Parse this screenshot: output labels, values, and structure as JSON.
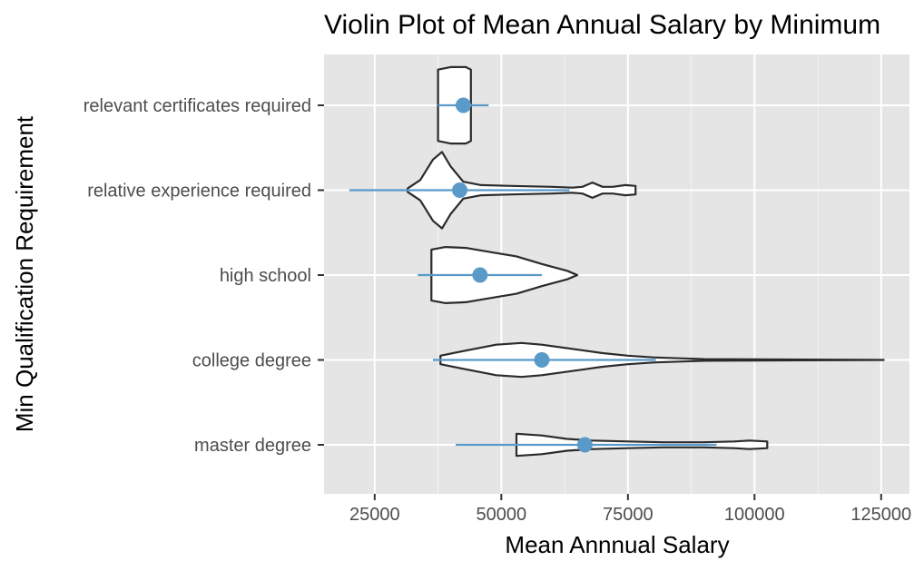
{
  "chart_data": {
    "type": "violin",
    "title": "Violin Plot of Mean Annual Salary by Minimum",
    "xlabel": "Mean Annnual Salary",
    "ylabel": "Min Qualification Requirement",
    "xlim": [
      15000,
      128000
    ],
    "x_ticks": [
      25000,
      50000,
      75000,
      100000,
      125000
    ],
    "x_tick_labels": [
      "25000",
      "50000",
      "75000",
      "100000",
      "125000"
    ],
    "categories": [
      "relevant certificates required",
      "relative experience required",
      "high school",
      "college degree",
      "master degree"
    ],
    "orientation": "horizontal",
    "grid": true,
    "colors": {
      "panel": "#e5e5e5",
      "grid": "#ffffff",
      "violin_stroke": "#2b2b2b",
      "violin_fill": "#ffffff",
      "summary": "#5a9ac9"
    },
    "series": [
      {
        "category": "relevant certificates required",
        "mean": 42500,
        "range": [
          37500,
          47500
        ],
        "density": [
          [
            37500,
            0.42
          ],
          [
            40000,
            0.45
          ],
          [
            43000,
            0.45
          ],
          [
            44000,
            0.42
          ]
        ]
      },
      {
        "category": "relative experience required",
        "mean": 41800,
        "range": [
          20000,
          63500
        ],
        "density": [
          [
            31500,
            0.02
          ],
          [
            34000,
            0.12
          ],
          [
            36500,
            0.36
          ],
          [
            38300,
            0.45
          ],
          [
            40000,
            0.28
          ],
          [
            42500,
            0.1
          ],
          [
            46000,
            0.06
          ],
          [
            52000,
            0.05
          ],
          [
            60000,
            0.04
          ],
          [
            64000,
            0.03
          ],
          [
            66000,
            0.04
          ],
          [
            68000,
            0.09
          ],
          [
            70000,
            0.04
          ],
          [
            72000,
            0.04
          ],
          [
            74500,
            0.06
          ],
          [
            76500,
            0.05
          ]
        ]
      },
      {
        "category": "high school",
        "mean": 45800,
        "range": [
          33500,
          58000
        ],
        "density": [
          [
            36200,
            0.3
          ],
          [
            39000,
            0.33
          ],
          [
            43000,
            0.32
          ],
          [
            48000,
            0.27
          ],
          [
            53000,
            0.22
          ],
          [
            58000,
            0.13
          ],
          [
            63000,
            0.05
          ],
          [
            65000,
            0.0
          ]
        ]
      },
      {
        "category": "college degree",
        "mean": 58000,
        "range": [
          36500,
          80500
        ],
        "density": [
          [
            38000,
            0.05
          ],
          [
            43000,
            0.11
          ],
          [
            49000,
            0.18
          ],
          [
            54000,
            0.2
          ],
          [
            58000,
            0.18
          ],
          [
            64000,
            0.13
          ],
          [
            70000,
            0.08
          ],
          [
            75000,
            0.05
          ],
          [
            80000,
            0.03
          ],
          [
            90000,
            0.01
          ],
          [
            125500,
            0.0
          ]
        ]
      },
      {
        "category": "master degree",
        "mean": 66500,
        "range": [
          41000,
          92500
        ],
        "density": [
          [
            53000,
            0.13
          ],
          [
            58000,
            0.11
          ],
          [
            63000,
            0.07
          ],
          [
            68000,
            0.05
          ],
          [
            75000,
            0.04
          ],
          [
            82000,
            0.03
          ],
          [
            90000,
            0.03
          ],
          [
            96000,
            0.04
          ],
          [
            99000,
            0.05
          ],
          [
            102500,
            0.04
          ]
        ]
      }
    ]
  }
}
